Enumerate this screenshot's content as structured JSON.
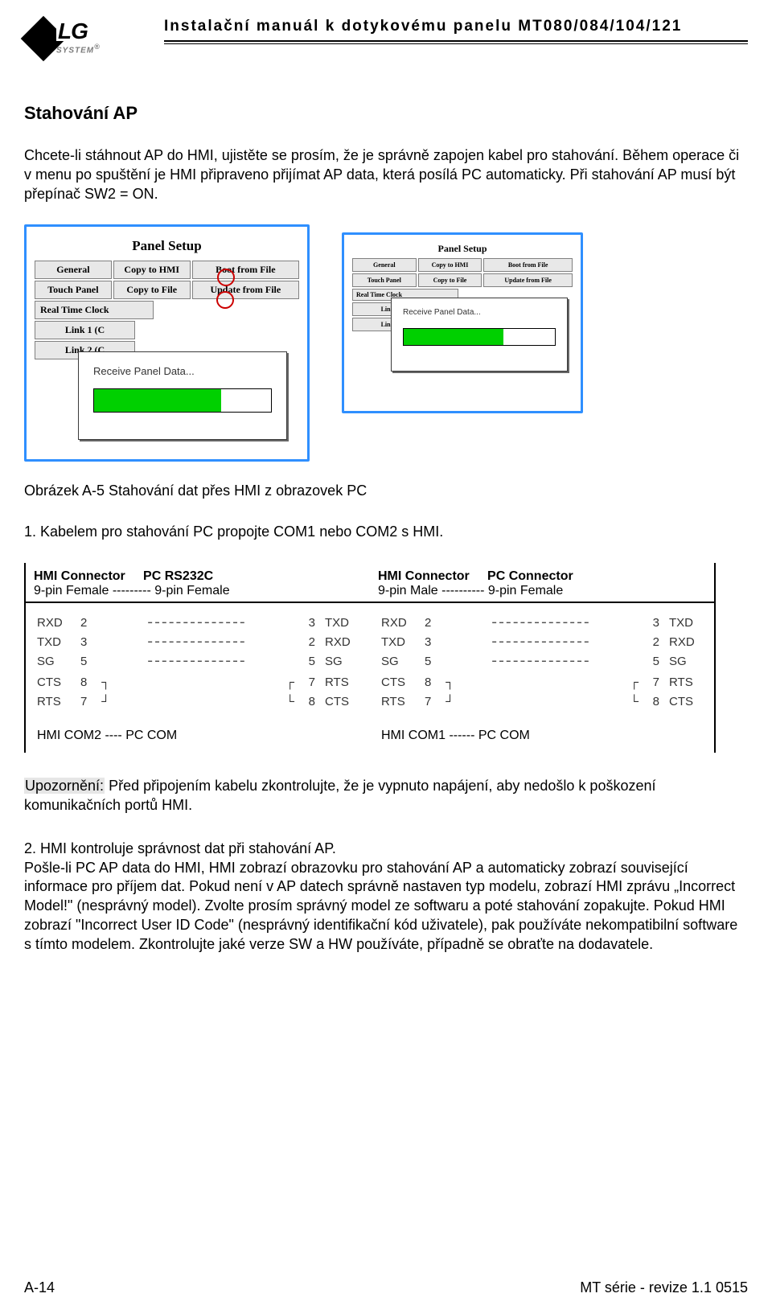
{
  "header": {
    "title": "Instalační manuál k dotykovému panelu MT080/084/104/121",
    "logo_lg": "LG",
    "logo_sys": "SYSTEM"
  },
  "section_title": "Stahování AP",
  "intro_p1": "Chcete-li stáhnout AP do HMI, ujistěte se prosím, že je správně zapojen kabel pro stahování. Během operace či v menu po spuštění je HMI připraveno přijímat AP data, která posílá PC automaticky. Při stahování AP musí být přepínač SW2 = ON.",
  "panel": {
    "title": "Panel Setup",
    "r1": {
      "a": "General",
      "b": "Copy to HMI",
      "c": "Boot from File"
    },
    "r2": {
      "a": "Touch Panel",
      "b": "Copy to File",
      "c": "Update from File"
    },
    "side1": "Real Time Clock",
    "side2": "Link 1 (C",
    "side3": "Link 2 (C",
    "dlg_text": "Receive Panel Data...",
    "progress_pct_a": 72,
    "progress_pct_b": 66,
    "colors": {
      "frame_border": "#2f8fff",
      "btn_bg": "#e8e8e8",
      "btn_border": "#808080",
      "mark_circle": "#cc0000",
      "progress_fill": "#00d000",
      "progress_bg": "#ffffff"
    }
  },
  "caption_a5": "Obrázek A-5 Stahování dat přes HMI z obrazovek PC",
  "numitem1": "1. Kabelem pro stahování PC propojte COM1 nebo COM2 s HMI.",
  "pinout": {
    "h1a": "HMI Connector",
    "h1b": "PC RS232C",
    "h1c": "9-pin Female --------- 9-pin Female",
    "h2a": "HMI Connector",
    "h2b": "PC Connector",
    "h2c": "9-pin Male ---------- 9-pin Female",
    "rows": [
      {
        "l": "RXD",
        "ln": "2",
        "rn": "3",
        "r": "TXD"
      },
      {
        "l": "TXD",
        "ln": "3",
        "rn": "2",
        "r": "RXD"
      },
      {
        "l": "SG",
        "ln": "5",
        "rn": "5",
        "r": "SG"
      }
    ],
    "jump": [
      {
        "l": "CTS",
        "ln": "8",
        "rn": "7",
        "r": "RTS"
      },
      {
        "l": "RTS",
        "ln": "7",
        "rn": "8",
        "r": "CTS"
      }
    ],
    "foot_l": "HMI COM2 ---- PC COM",
    "foot_r": "HMI COM1 ------ PC COM"
  },
  "warn_label": "Upozornění:",
  "warn_body": " Před připojením kabelu zkontrolujte, že je vypnuto napájení, aby nedošlo k poškození komunikačních portů HMI.",
  "p2": "2. HMI kontroluje správnost dat při stahování AP.\nPošle-li PC AP data do HMI, HMI zobrazí obrazovku pro stahování AP a automaticky zobrazí související informace pro příjem dat. Pokud není v AP datech správně nastaven typ modelu, zobrazí HMI zprávu „Incorrect Model!\" (nesprávný model). Zvolte prosím správný model ze softwaru a poté stahování zopakujte. Pokud HMI zobrazí \"Incorrect User ID Code\" (nesprávný identifikační kód uživatele), pak používáte nekompatibilní software s tímto modelem. Zkontrolujte jaké verze SW a HW používáte, případně se obraťte na dodavatele.",
  "footer": {
    "left": "A-14",
    "right": "MT série - revize 1.1   0515"
  }
}
